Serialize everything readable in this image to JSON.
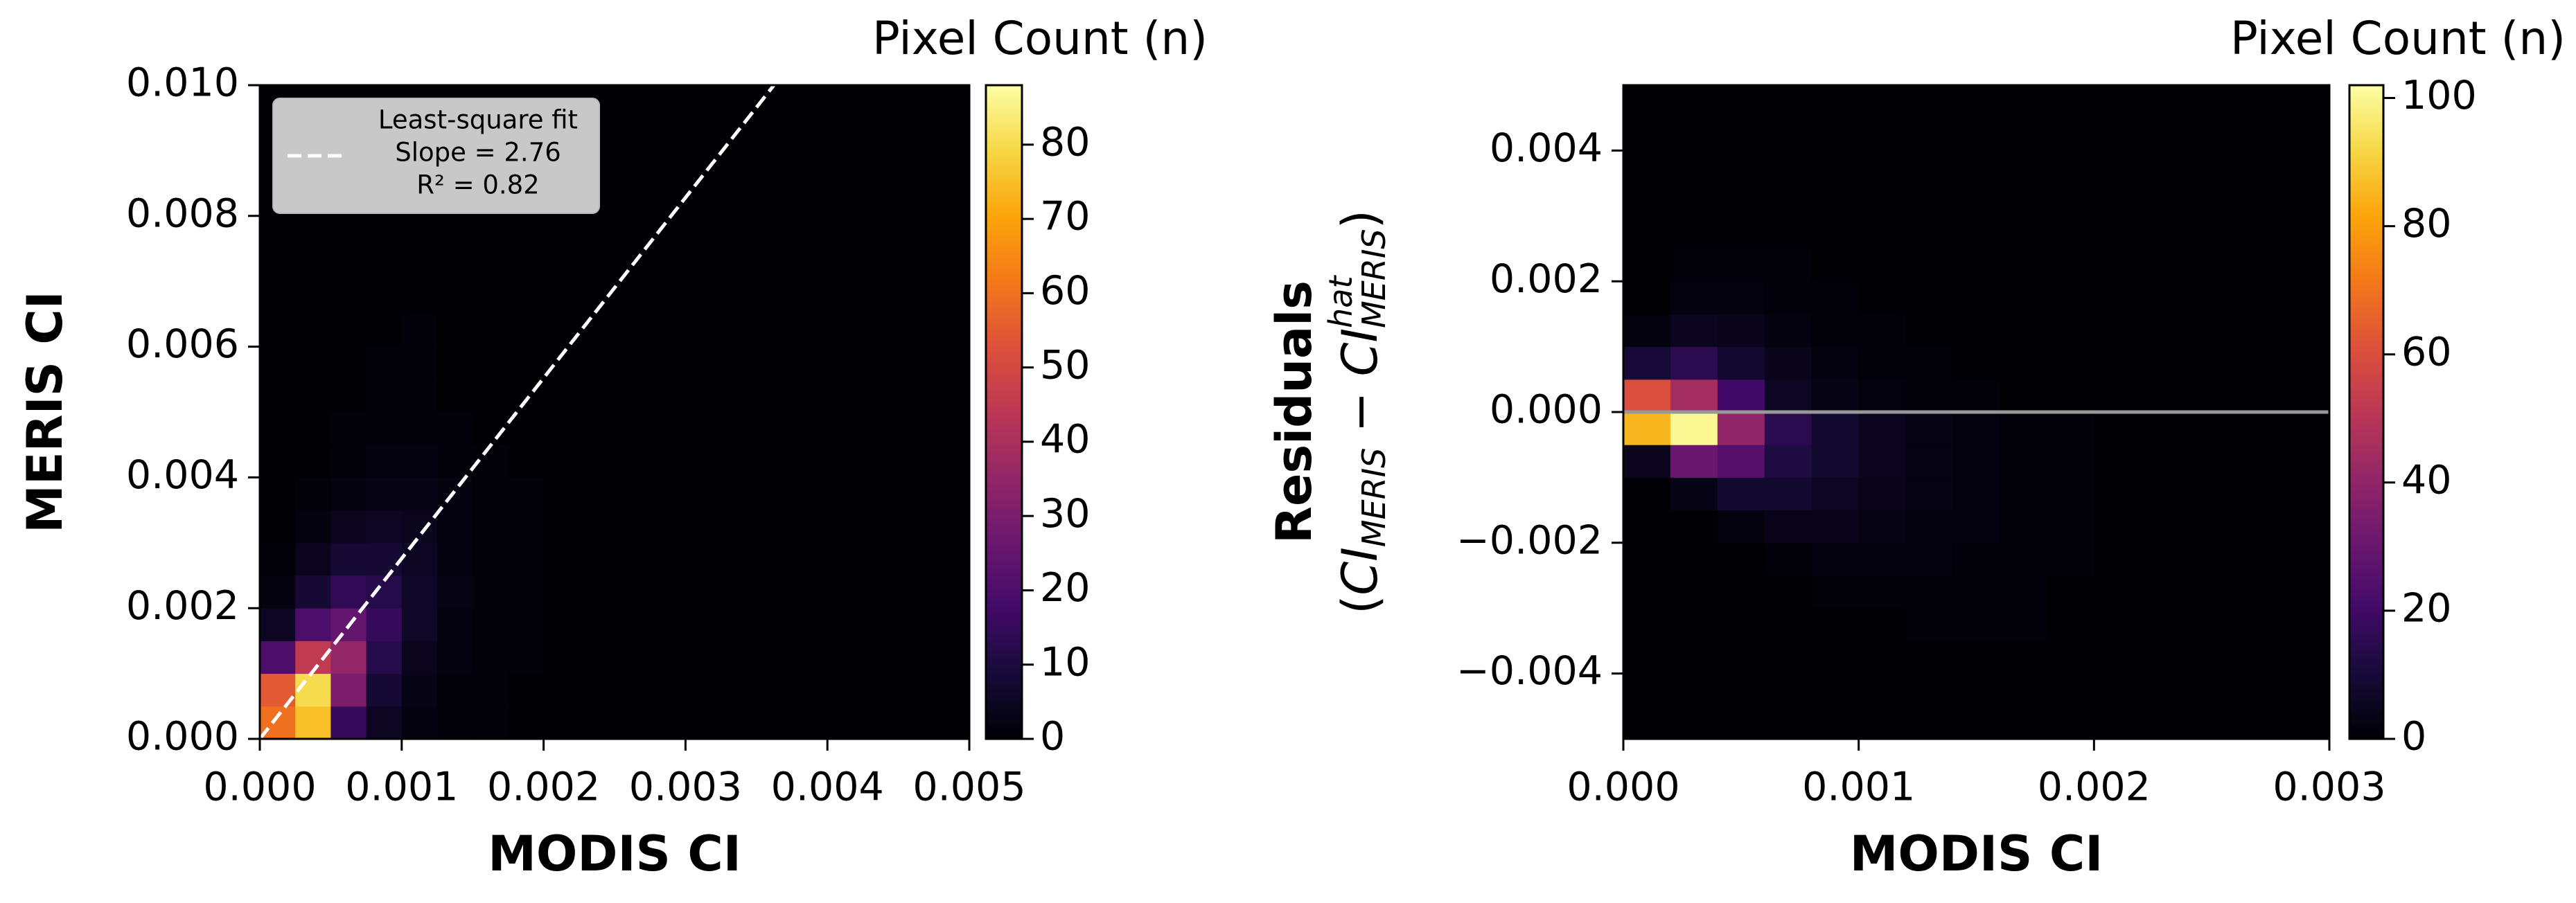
{
  "chart_data": [
    {
      "type": "heatmap",
      "colormap": "inferno",
      "xlabel": "MODIS CI",
      "ylabel": "MERIS CI",
      "xlim": [
        0,
        0.005
      ],
      "ylim": [
        0,
        0.01
      ],
      "xticks": [
        {
          "value": 0,
          "label": "0.000"
        },
        {
          "value": 0.001,
          "label": "0.001"
        },
        {
          "value": 0.002,
          "label": "0.002"
        },
        {
          "value": 0.003,
          "label": "0.003"
        },
        {
          "value": 0.004,
          "label": "0.004"
        },
        {
          "value": 0.005,
          "label": "0.005"
        }
      ],
      "yticks": [
        {
          "value": 0,
          "label": "0.000"
        },
        {
          "value": 0.002,
          "label": "0.002"
        },
        {
          "value": 0.004,
          "label": "0.004"
        },
        {
          "value": 0.006,
          "label": "0.006"
        },
        {
          "value": 0.008,
          "label": "0.008"
        },
        {
          "value": 0.01,
          "label": "0.010"
        }
      ],
      "colorbar_label": "Pixel Count (n)",
      "clim": [
        0,
        88
      ],
      "cticks": [
        0,
        10,
        20,
        30,
        40,
        50,
        60,
        70,
        80
      ],
      "xbins": [
        0,
        0.00025,
        0.0005,
        0.00075,
        0.001,
        0.00125,
        0.0015,
        0.00175,
        0.002,
        0.00225,
        0.0025,
        0.00275,
        0.003,
        0.00325,
        0.0035,
        0.00375,
        0.004,
        0.00425,
        0.0045,
        0.00475,
        0.005
      ],
      "ybins": [
        0,
        0.0005,
        0.001,
        0.0015,
        0.002,
        0.0025,
        0.003,
        0.0035,
        0.004,
        0.0045,
        0.005,
        0.0055,
        0.006,
        0.0065,
        0.007,
        0.0075,
        0.008,
        0.0085,
        0.009,
        0.0095,
        0.01
      ],
      "values": [
        [
          60,
          75,
          15,
          5,
          2,
          1,
          1,
          0,
          0,
          0,
          0,
          0,
          0,
          0,
          0,
          0,
          0,
          0,
          0,
          0
        ],
        [
          55,
          80,
          30,
          8,
          3,
          1,
          1,
          0,
          0,
          0,
          0,
          0,
          0,
          0,
          0,
          0,
          0,
          0,
          0,
          0
        ],
        [
          20,
          45,
          35,
          12,
          4,
          2,
          1,
          1,
          0,
          0,
          0,
          0,
          0,
          0,
          0,
          0,
          0,
          0,
          0,
          0
        ],
        [
          5,
          20,
          25,
          15,
          6,
          2,
          1,
          1,
          0,
          0,
          0,
          0,
          0,
          0,
          0,
          0,
          0,
          0,
          0,
          0
        ],
        [
          2,
          8,
          14,
          12,
          6,
          3,
          1,
          1,
          0,
          0,
          0,
          0,
          0,
          0,
          0,
          0,
          0,
          0,
          0,
          0
        ],
        [
          1,
          4,
          8,
          8,
          5,
          2,
          1,
          1,
          0,
          0,
          0,
          0,
          0,
          0,
          0,
          0,
          0,
          0,
          0,
          0
        ],
        [
          0,
          2,
          4,
          5,
          4,
          2,
          1,
          1,
          0,
          0,
          0,
          0,
          0,
          0,
          0,
          0,
          0,
          0,
          0,
          0
        ],
        [
          0,
          1,
          2,
          3,
          3,
          2,
          1,
          1,
          0,
          0,
          0,
          0,
          0,
          0,
          0,
          0,
          0,
          0,
          0,
          0
        ],
        [
          0,
          0,
          1,
          2,
          2,
          1,
          1,
          0,
          0,
          0,
          0,
          0,
          0,
          0,
          0,
          0,
          0,
          0,
          0,
          0
        ],
        [
          0,
          0,
          1,
          1,
          1,
          1,
          0,
          0,
          0,
          0,
          0,
          0,
          0,
          0,
          0,
          0,
          0,
          0,
          0,
          0
        ],
        [
          0,
          0,
          0,
          1,
          1,
          0,
          0,
          0,
          0,
          0,
          0,
          0,
          0,
          0,
          0,
          0,
          0,
          0,
          0,
          0
        ],
        [
          0,
          0,
          0,
          1,
          1,
          0,
          0,
          0,
          0,
          0,
          0,
          0,
          0,
          0,
          0,
          0,
          0,
          0,
          0,
          0
        ],
        [
          0,
          0,
          0,
          0,
          1,
          0,
          0,
          0,
          0,
          0,
          0,
          0,
          0,
          0,
          0,
          0,
          0,
          0,
          0,
          0
        ],
        [
          0,
          0,
          0,
          0,
          0,
          0,
          0,
          0,
          0,
          0,
          0,
          0,
          0,
          0,
          0,
          0,
          0,
          0,
          0,
          0
        ],
        [
          0,
          0,
          0,
          0,
          0,
          0,
          0,
          0,
          0,
          0,
          0,
          0,
          0,
          0,
          0,
          0,
          0,
          0,
          0,
          0
        ],
        [
          0,
          0,
          0,
          0,
          0,
          0,
          0,
          0,
          0,
          0,
          0,
          0,
          0,
          0,
          0,
          0,
          0,
          0,
          0,
          0
        ],
        [
          0,
          0,
          0,
          0,
          0,
          0,
          0,
          0,
          0,
          0,
          0,
          0,
          0,
          0,
          0,
          0,
          0,
          0,
          0,
          0
        ],
        [
          0,
          0,
          0,
          0,
          0,
          0,
          0,
          0,
          0,
          0,
          0,
          0,
          0,
          0,
          0,
          0,
          0,
          0,
          0,
          0
        ],
        [
          0,
          0,
          0,
          0,
          0,
          0,
          0,
          0,
          0,
          0,
          0,
          0,
          0,
          0,
          0,
          0,
          0,
          0,
          0,
          0
        ],
        [
          0,
          0,
          0,
          0,
          0,
          0,
          0,
          0,
          0,
          0,
          0,
          0,
          0,
          0,
          0,
          0,
          0,
          0,
          0,
          0
        ]
      ],
      "fit_slope": 2.76,
      "fit_intercept": 0,
      "fit_color": "#ffffff",
      "legend_lines": [
        "Least-square fit",
        "Slope = 2.76",
        "R² = 0.82"
      ]
    },
    {
      "type": "heatmap",
      "colormap": "inferno",
      "xlabel": "MODIS CI",
      "ylabel": "Residuals",
      "ylabel_math": [
        {
          "text": "(",
          "style": "normal"
        },
        {
          "text": "CI",
          "style": "italic"
        },
        {
          "text": "MERIS",
          "style": "sub"
        },
        {
          "text": " − ",
          "style": "normal"
        },
        {
          "text": "CI",
          "style": "italic"
        },
        {
          "text": "hat",
          "style": "sup"
        },
        {
          "text": "MERIS",
          "style": "sub-under"
        },
        {
          "text": ")",
          "style": "normal"
        }
      ],
      "xlim": [
        0,
        0.003
      ],
      "ylim": [
        -0.005,
        0.005
      ],
      "xticks": [
        {
          "value": 0,
          "label": "0.000"
        },
        {
          "value": 0.001,
          "label": "0.001"
        },
        {
          "value": 0.002,
          "label": "0.002"
        },
        {
          "value": 0.003,
          "label": "0.003"
        }
      ],
      "yticks": [
        {
          "value": -0.004,
          "label": "−0.004"
        },
        {
          "value": -0.002,
          "label": "−0.002"
        },
        {
          "value": 0,
          "label": "0.000"
        },
        {
          "value": 0.002,
          "label": "0.002"
        },
        {
          "value": 0.004,
          "label": "0.004"
        }
      ],
      "colorbar_label": "Pixel Count (n)",
      "clim": [
        0,
        102
      ],
      "cticks": [
        0,
        20,
        40,
        60,
        80,
        100
      ],
      "xbins": [
        0,
        0.0002,
        0.0004,
        0.0006,
        0.0008,
        0.001,
        0.0012,
        0.0014,
        0.0016,
        0.0018,
        0.002,
        0.0022,
        0.0024,
        0.0026,
        0.0028,
        0.003
      ],
      "ybins": [
        -0.005,
        -0.0045,
        -0.004,
        -0.0035,
        -0.003,
        -0.0025,
        -0.002,
        -0.0015,
        -0.001,
        -0.0005,
        0,
        0.0005,
        0.001,
        0.0015,
        0.002,
        0.0025,
        0.003,
        0.0035,
        0.004,
        0.0045,
        0.005
      ],
      "values": [
        [
          0,
          0,
          0,
          0,
          0,
          0,
          0,
          0,
          0,
          0,
          0,
          0,
          0,
          0,
          0
        ],
        [
          0,
          0,
          0,
          0,
          0,
          0,
          0,
          0,
          0,
          0,
          0,
          0,
          0,
          0,
          0
        ],
        [
          0,
          0,
          0,
          0,
          0,
          0,
          0,
          0,
          0,
          0,
          0,
          0,
          0,
          0,
          0
        ],
        [
          0,
          0,
          0,
          0,
          0,
          0,
          1,
          1,
          1,
          0,
          0,
          0,
          0,
          0,
          0
        ],
        [
          0,
          0,
          0,
          0,
          1,
          1,
          1,
          1,
          1,
          0,
          0,
          0,
          0,
          0,
          0
        ],
        [
          0,
          0,
          0,
          1,
          2,
          2,
          2,
          1,
          1,
          1,
          0,
          0,
          0,
          0,
          0
        ],
        [
          0,
          0,
          2,
          4,
          4,
          3,
          2,
          2,
          1,
          1,
          0,
          0,
          0,
          0,
          0
        ],
        [
          0,
          3,
          8,
          8,
          6,
          4,
          3,
          2,
          1,
          1,
          0,
          0,
          0,
          0,
          0
        ],
        [
          5,
          30,
          25,
          12,
          8,
          5,
          3,
          2,
          1,
          1,
          0,
          0,
          0,
          0,
          0
        ],
        [
          85,
          100,
          40,
          15,
          8,
          5,
          3,
          2,
          1,
          1,
          0,
          0,
          0,
          0,
          0
        ],
        [
          60,
          45,
          20,
          6,
          3,
          2,
          1,
          1,
          0,
          0,
          0,
          0,
          0,
          0,
          0
        ],
        [
          10,
          15,
          8,
          4,
          2,
          1,
          1,
          0,
          0,
          0,
          0,
          0,
          0,
          0,
          0
        ],
        [
          2,
          5,
          4,
          2,
          1,
          1,
          0,
          0,
          0,
          0,
          0,
          0,
          0,
          0,
          0
        ],
        [
          0,
          2,
          2,
          1,
          1,
          0,
          0,
          0,
          0,
          0,
          0,
          0,
          0,
          0,
          0
        ],
        [
          0,
          1,
          1,
          1,
          0,
          0,
          0,
          0,
          0,
          0,
          0,
          0,
          0,
          0,
          0
        ],
        [
          0,
          0,
          0,
          0,
          0,
          0,
          0,
          0,
          0,
          0,
          0,
          0,
          0,
          0,
          0
        ],
        [
          0,
          0,
          0,
          0,
          0,
          0,
          0,
          0,
          0,
          0,
          0,
          0,
          0,
          0,
          0
        ],
        [
          0,
          0,
          0,
          0,
          0,
          0,
          0,
          0,
          0,
          0,
          0,
          0,
          0,
          0,
          0
        ],
        [
          0,
          0,
          0,
          0,
          0,
          0,
          0,
          0,
          0,
          0,
          0,
          0,
          0,
          0,
          0
        ],
        [
          0,
          0,
          0,
          0,
          0,
          0,
          0,
          0,
          0,
          0,
          0,
          0,
          0,
          0,
          0
        ]
      ],
      "hline": 0,
      "hline_color": "#999999"
    }
  ]
}
